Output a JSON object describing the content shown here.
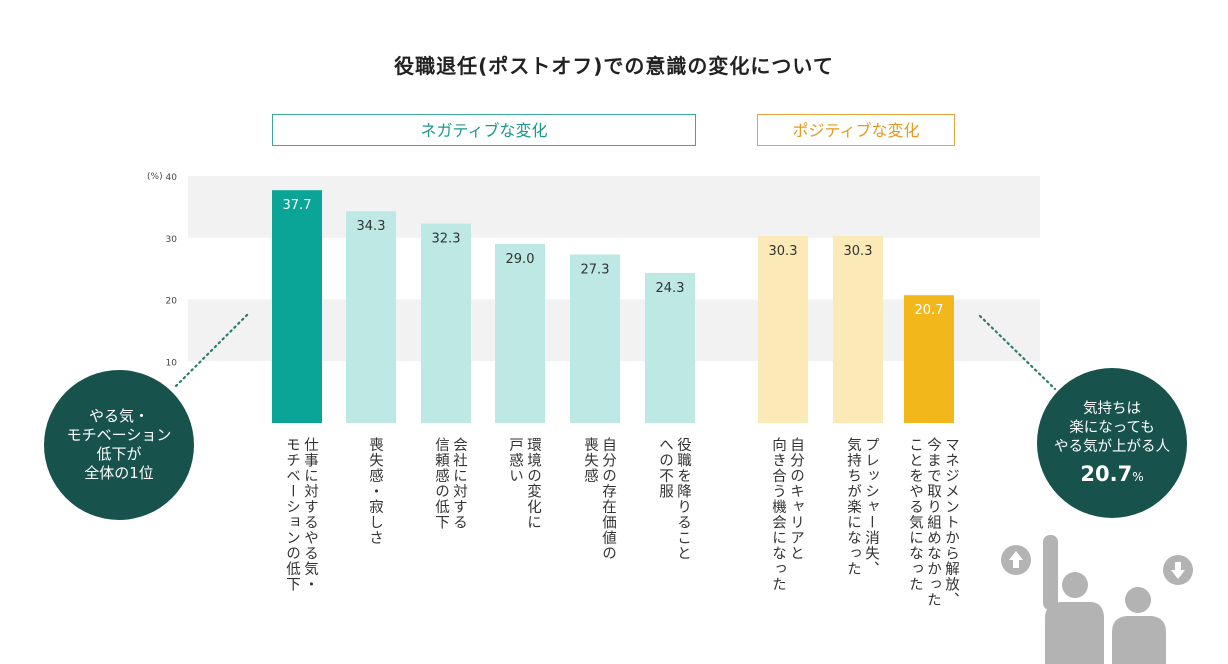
{
  "title": "役職退任(ポストオフ)での意識の変化について",
  "groups": {
    "negative": "ネガティブな変化",
    "positive": "ポジティブな変化"
  },
  "unit": "(%)",
  "colors": {
    "neg_highlight": "#0aa596",
    "neg": "#bde8e4",
    "pos": "#fbe9b7",
    "pos_highlight": "#f2b81b",
    "band": "#f2f2f2",
    "dots": "#2f7a6e"
  },
  "chart_data": {
    "type": "bar",
    "title": "役職退任(ポストオフ)での意識の変化について",
    "ylabel": "(%)",
    "ylim": [
      0,
      40
    ],
    "yticks": [
      10,
      20,
      30,
      40
    ],
    "categories": [
      "仕事に対するやる気・\nモチベーションの低下",
      "喪失感・寂しさ",
      "会社に対する\n信頼感の低下",
      "環境の変化に\n戸惑い",
      "自分の存在価値の\n喪失感",
      "役職を降りること\nへの不服",
      "自分のキャリアと\n向き合う機会になった",
      "プレッシャー消失、\n気持ちが楽になった",
      "マネジメントから解放、\n今まで取り組めなかった\nことをやる気になった"
    ],
    "values": [
      37.7,
      34.3,
      32.3,
      29.0,
      27.3,
      24.3,
      30.3,
      30.3,
      20.7
    ],
    "value_labels": [
      "37.7",
      "34.3",
      "32.3",
      "29.0",
      "27.3",
      "24.3",
      "30.3",
      "30.3",
      "20.7"
    ],
    "group": [
      "negative",
      "negative",
      "negative",
      "negative",
      "negative",
      "negative",
      "positive",
      "positive",
      "positive"
    ],
    "highlight": [
      true,
      false,
      false,
      false,
      false,
      false,
      false,
      false,
      true
    ]
  },
  "callout_left": {
    "lines": [
      "やる気・",
      "モチベーション",
      "低下が",
      "全体の1位"
    ]
  },
  "callout_right": {
    "lines": [
      "気持ちは",
      "楽になっても",
      "やる気が上がる人"
    ],
    "value": "20.7",
    "unit": "%"
  }
}
